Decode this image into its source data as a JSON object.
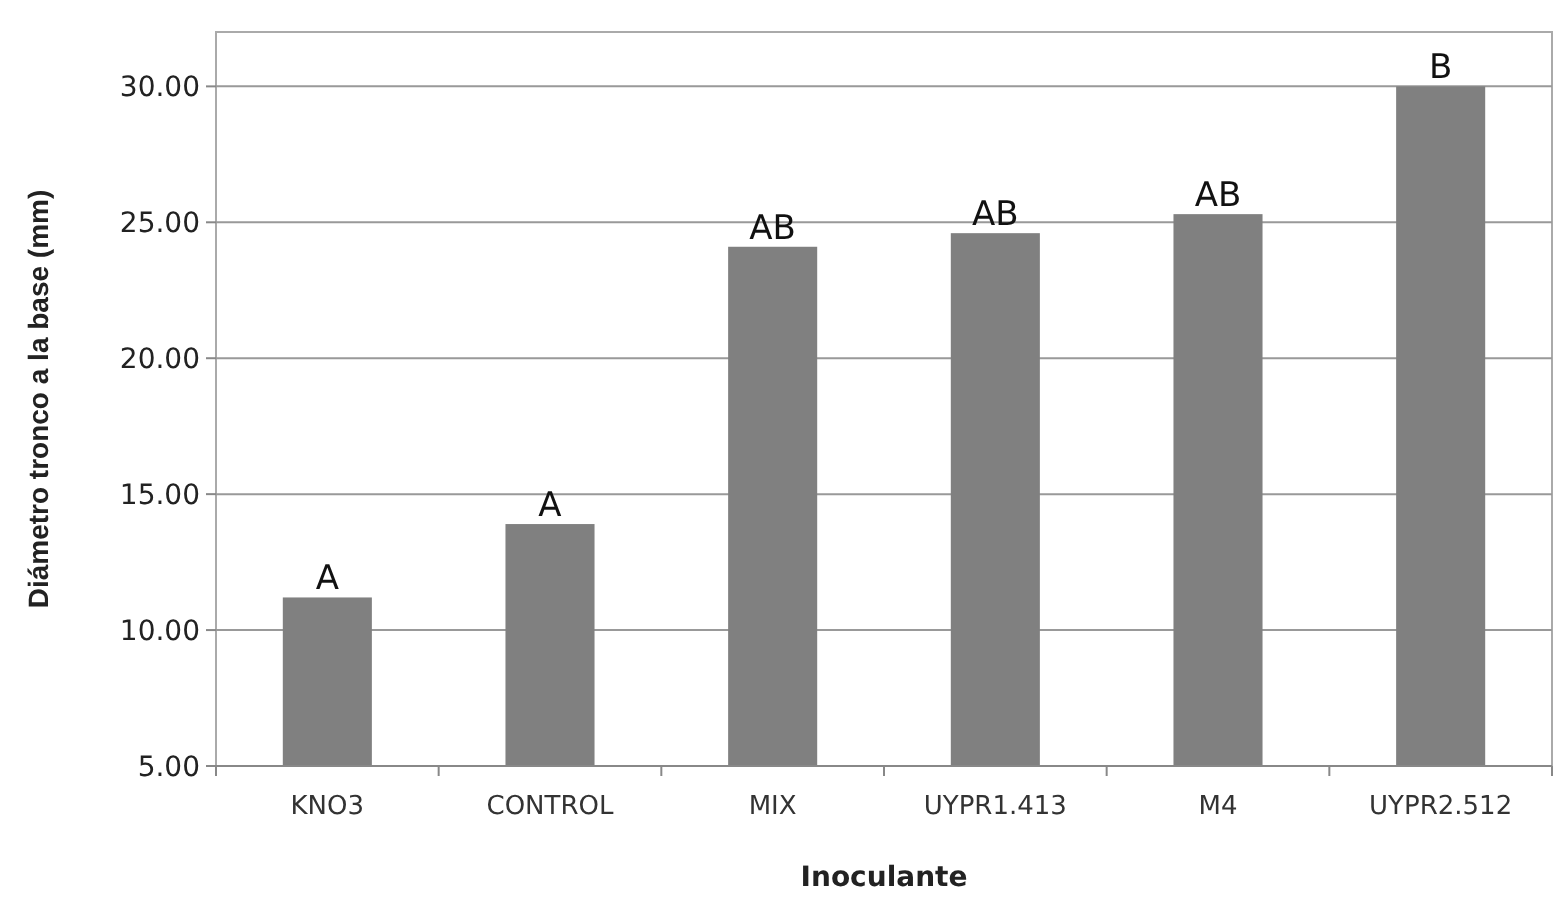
{
  "chart_data": {
    "type": "bar",
    "xlabel": "Inoculante",
    "ylabel": "Diámetro tronco a la base (mm)",
    "categories": [
      "KNO3",
      "CONTROL",
      "MIX",
      "UYPR1.413",
      "M4",
      "UYPR2.512"
    ],
    "values": [
      11.2,
      13.9,
      24.1,
      24.6,
      25.3,
      30.0
    ],
    "color": "#808080",
    "ylim": [
      5,
      32
    ],
    "yticks": [
      {
        "value": 5,
        "label": "5.00"
      },
      {
        "value": 10,
        "label": "10.00"
      },
      {
        "value": 15,
        "label": "15.00"
      },
      {
        "value": 20,
        "label": "20.00"
      },
      {
        "value": 25,
        "label": "25.00"
      },
      {
        "value": 30,
        "label": "30.00"
      }
    ],
    "grid": "y",
    "annotations": [
      {
        "text": "A",
        "x": "KNO3",
        "y": 11.2
      },
      {
        "text": "A",
        "x": "CONTROL",
        "y": 13.9
      },
      {
        "text": "AB",
        "x": "MIX",
        "y": 24.1
      },
      {
        "text": "AB",
        "x": "UYPR1.413",
        "y": 24.6
      },
      {
        "text": "AB",
        "x": "M4",
        "y": 25.3
      },
      {
        "text": "B",
        "x": "UYPR2.512",
        "y": 30.0
      }
    ]
  }
}
